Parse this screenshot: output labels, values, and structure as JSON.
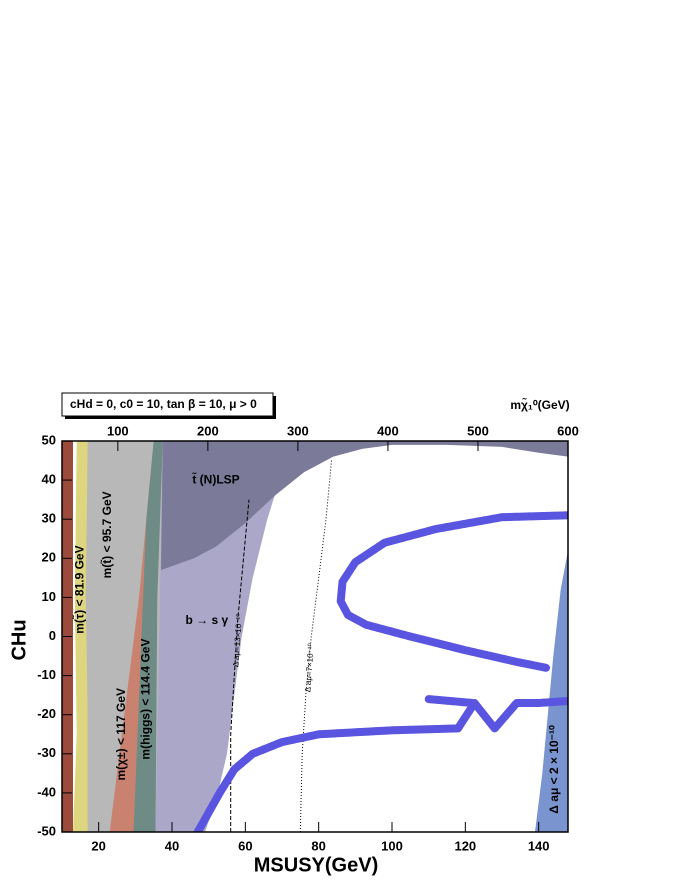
{
  "chart_data": {
    "type": "area",
    "title": "cHd = 0, c0 = 10, tan β = 10, μ > 0",
    "xlabel": "MSUSY(GeV)",
    "ylabel": "CHu",
    "x2label": "mχ̃₁⁰(GeV)",
    "xlim": [
      10,
      148
    ],
    "xticks": [
      20,
      40,
      60,
      80,
      100,
      120,
      140
    ],
    "x2lim": [
      38,
      600
    ],
    "x2ticks": [
      100,
      200,
      300,
      400,
      500,
      600
    ],
    "ylim": [
      -50,
      50
    ],
    "yticks": [
      -50,
      -40,
      -30,
      -20,
      -10,
      0,
      10,
      20,
      30,
      40,
      50
    ],
    "regions": [
      {
        "color": "#b8b8b8",
        "x": [
          16,
          38,
          38,
          16
        ],
        "y": [
          -50,
          -50,
          50,
          50
        ]
      },
      {
        "color": "#9b4a3c",
        "x": [
          10,
          13,
          13,
          10
        ],
        "y": [
          -50,
          -50,
          50,
          50
        ]
      },
      {
        "name": "m(τ̃) < 81.9 GeV",
        "color": "#ddd67e",
        "x": [
          13,
          17,
          17,
          16.5,
          17,
          14,
          13.5,
          14,
          13
        ],
        "y": [
          -50,
          -50,
          -20,
          10,
          50,
          50,
          10,
          -25,
          -50
        ]
      },
      {
        "name": "m(t̃) < 95.7 GeV",
        "color": "#b8b8b8",
        "x": [
          17,
          23,
          27,
          31,
          34,
          17
        ],
        "y": [
          -50,
          -50,
          -20,
          10,
          50,
          50
        ]
      },
      {
        "name": "m(χ±) < 117 GeV",
        "color": "#c98270",
        "x": [
          23,
          29.5,
          33,
          36,
          35,
          31,
          27
        ],
        "y": [
          -50,
          -50,
          -10,
          30,
          50,
          10,
          -20
        ]
      },
      {
        "name": "m(higgs) < 114.4 GeV",
        "color": "#6f8b86",
        "x": [
          29.5,
          35.5,
          36,
          37.5,
          35,
          33
        ],
        "y": [
          -50,
          -50,
          10,
          50,
          50,
          30
        ]
      },
      {
        "name": "b → s γ",
        "color": "#aaa7c9",
        "x": [
          35.5,
          49,
          52,
          55,
          57,
          59,
          62,
          66,
          70,
          74,
          37.5,
          36.5
        ],
        "y": [
          -50,
          -50,
          -42,
          -30,
          -15,
          0,
          15,
          30,
          42,
          50,
          50,
          0
        ]
      },
      {
        "name": "t̃ (N)LSP",
        "color": "#7b7a99",
        "x": [
          37.5,
          37,
          40,
          46,
          52,
          60,
          68,
          76,
          84,
          92,
          100,
          115,
          130,
          140,
          148,
          148
        ],
        "y": [
          50,
          17,
          18,
          20,
          23,
          29,
          36,
          42,
          46,
          48,
          49,
          49,
          48.5,
          47,
          46,
          50
        ]
      },
      {
        "name": "Δ aμ < 2 × 10⁻¹⁰",
        "color": "#7a94d0",
        "x": [
          139,
          141,
          142.5,
          144,
          146,
          148,
          148
        ],
        "y": [
          -50,
          -35,
          -20,
          -5,
          12,
          22,
          -50
        ]
      }
    ],
    "contours": [
      {
        "name": "Δ aμ=13×10⁻¹⁰",
        "style": "dashed",
        "x": [
          56,
          56,
          57,
          58,
          59.5,
          61
        ],
        "y": [
          -50,
          -25,
          -10,
          5,
          20,
          35
        ]
      },
      {
        "name": "Δ aμ=7×10⁻¹⁰",
        "style": "dotted",
        "x": [
          75,
          75.5,
          76.5,
          78,
          80,
          82,
          83.5
        ],
        "y": [
          -50,
          -30,
          -15,
          0,
          15,
          30,
          45
        ]
      }
    ],
    "series": [
      {
        "color": "#5a55e0",
        "x": [
          47,
          50,
          53,
          57,
          62,
          70,
          80,
          100,
          118,
          122.5,
          128,
          134,
          140,
          148
        ],
        "y": [
          -50,
          -45,
          -40,
          -34,
          -30,
          -27,
          -25,
          -24,
          -23.5,
          -17,
          -23.5,
          -17,
          -17,
          -16.5
        ]
      },
      {
        "color": "#5a55e0",
        "x": [
          110,
          122
        ],
        "y": [
          -16,
          -17
        ]
      },
      {
        "color": "#5a55e0",
        "x": [
          148,
          130,
          112,
          98,
          90,
          86.5,
          86,
          88,
          93,
          105,
          120,
          134,
          142
        ],
        "y": [
          31,
          30.5,
          27.5,
          24,
          19,
          14,
          9,
          5.5,
          3,
          0,
          -3.5,
          -6.5,
          -8
        ]
      }
    ]
  }
}
